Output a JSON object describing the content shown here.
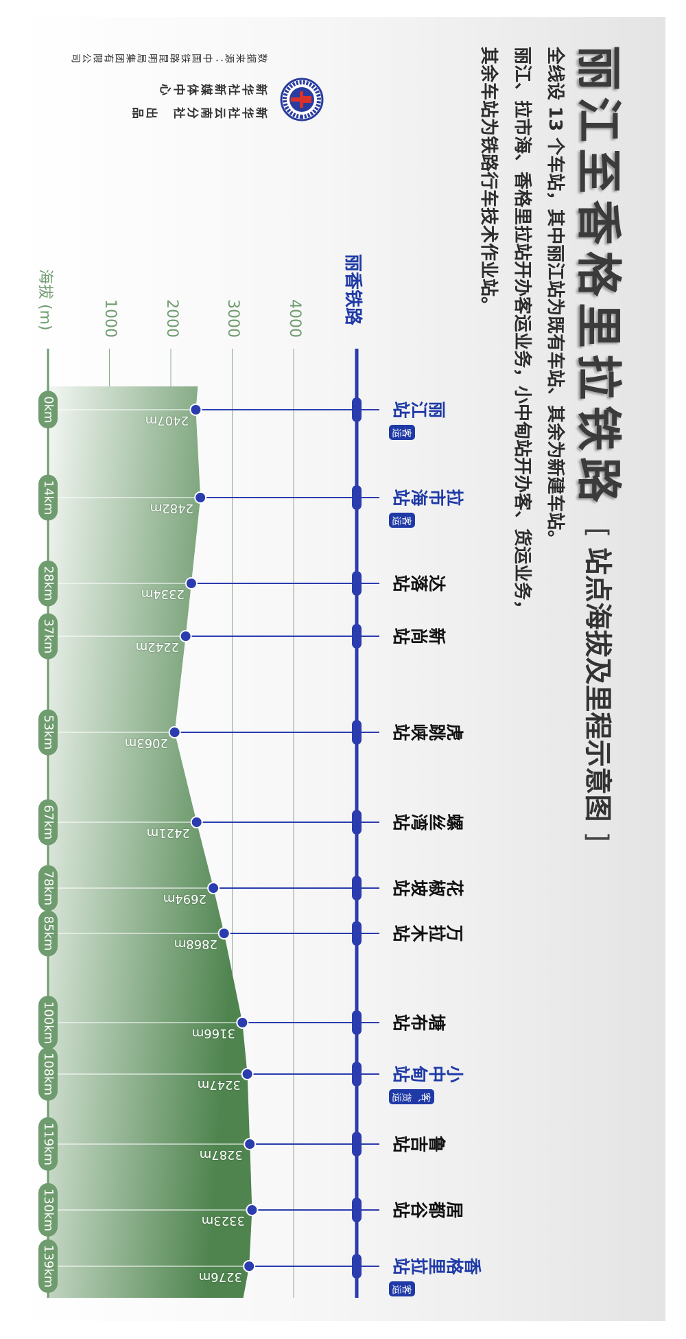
{
  "header": {
    "title": "丽江至香格里拉铁路",
    "subtitle_open": "[",
    "subtitle": "站点海拔及里程示意图",
    "subtitle_close": "]",
    "description": [
      "全线设 13 个车站，其中丽江站为既有车站、其余为新建车站。",
      "丽江、拉市海、香格里拉站开办客运业务，小中甸站开办客、货运业务，",
      "其余车站为铁路行车技术作业站。"
    ]
  },
  "credits": {
    "producer_1": "新华社云南分社　出品",
    "producer_2": "新华社新媒体中心",
    "source": "数据来源：中国铁路昆明局集团有限公司",
    "logo": "xinhua-yunnan-logo"
  },
  "colors": {
    "rail": "#2a3cae",
    "terrain_dark": "#5a8c5a",
    "terrain_light": "#f1f5f1",
    "axis_green": "#6f9c6f",
    "passenger_station": "#1f3aa6",
    "other_station": "#111111"
  },
  "chart_data": {
    "type": "area",
    "line_label": "丽香铁路",
    "ylabel": "海拔 (m)",
    "yticks": [
      1000,
      2000,
      3000,
      4000
    ],
    "ylim": [
      0,
      4500
    ],
    "grid": true,
    "stations": [
      {
        "name": "丽江站",
        "km": "0km",
        "elevation": 2407,
        "elevation_label": "2407m",
        "badge": "客运"
      },
      {
        "name": "拉市海站",
        "km": "14km",
        "elevation": 2482,
        "elevation_label": "2482m",
        "badge": "客运"
      },
      {
        "name": "达落站",
        "km": "28km",
        "elevation": 2334,
        "elevation_label": "2334m",
        "badge": ""
      },
      {
        "name": "新尚站",
        "km": "37km",
        "elevation": 2242,
        "elevation_label": "2242m",
        "badge": ""
      },
      {
        "name": "虎跳峡站",
        "km": "53km",
        "elevation": 2063,
        "elevation_label": "2063m",
        "badge": ""
      },
      {
        "name": "螺丝湾站",
        "km": "67km",
        "elevation": 2421,
        "elevation_label": "2421m",
        "badge": ""
      },
      {
        "name": "花椒坡站",
        "km": "78km",
        "elevation": 2694,
        "elevation_label": "2694m",
        "badge": ""
      },
      {
        "name": "万拉木站",
        "km": "85km",
        "elevation": 2868,
        "elevation_label": "2868m",
        "badge": ""
      },
      {
        "name": "塘布站",
        "km": "100km",
        "elevation": 3166,
        "elevation_label": "3166m",
        "badge": ""
      },
      {
        "name": "小中甸站",
        "km": "108km",
        "elevation": 3247,
        "elevation_label": "3247m",
        "badge": "客、货运"
      },
      {
        "name": "鲁吉站",
        "km": "119km",
        "elevation": 3287,
        "elevation_label": "3287m",
        "badge": ""
      },
      {
        "name": "居都谷站",
        "km": "130km",
        "elevation": 3323,
        "elevation_label": "3323m",
        "badge": ""
      },
      {
        "name": "香格里拉站",
        "km": "139km",
        "elevation": 3276,
        "elevation_label": "3276m",
        "badge": "客运"
      }
    ]
  }
}
